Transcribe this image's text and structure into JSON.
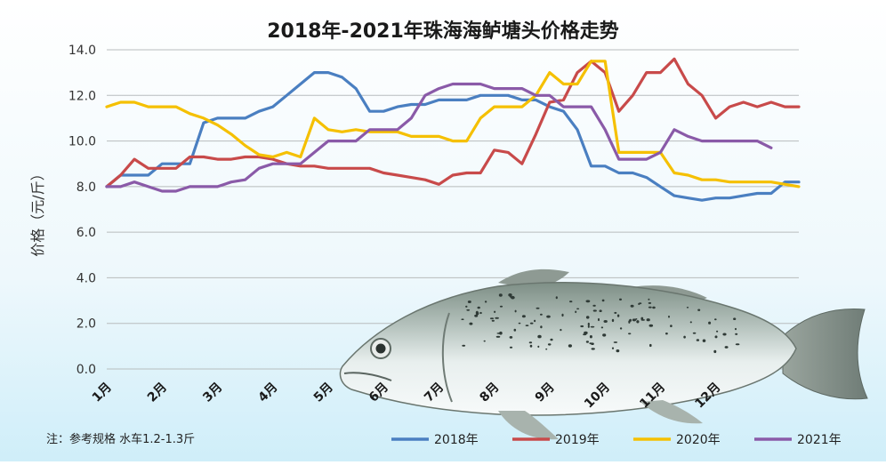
{
  "chart_data": {
    "type": "line",
    "title": "2018年-2021年珠海海鲈塘头价格走势",
    "ylabel": "价格（元/斤）",
    "xlabel": "",
    "ylim": [
      0,
      14
    ],
    "yticks": [
      "0.0",
      "2.0",
      "4.0",
      "6.0",
      "8.0",
      "10.0",
      "12.0",
      "14.0"
    ],
    "categories": [
      "1月",
      "2月",
      "3月",
      "4月",
      "5月",
      "6月",
      "7月",
      "8月",
      "9月",
      "10月",
      "11月",
      "12月"
    ],
    "grid": true,
    "legend_position": "bottom",
    "note": "注：参考规格  水车1.2-1.3斤",
    "series": [
      {
        "name": "2018年",
        "color": "#4a7fc1",
        "points": [
          [
            1.0,
            8.0
          ],
          [
            1.25,
            8.5
          ],
          [
            1.5,
            8.5
          ],
          [
            1.75,
            8.5
          ],
          [
            2.0,
            9.0
          ],
          [
            2.25,
            9.0
          ],
          [
            2.5,
            9.0
          ],
          [
            2.75,
            10.8
          ],
          [
            3.0,
            11.0
          ],
          [
            3.25,
            11.0
          ],
          [
            3.5,
            11.0
          ],
          [
            3.75,
            11.3
          ],
          [
            4.0,
            11.5
          ],
          [
            4.25,
            12.0
          ],
          [
            4.5,
            12.5
          ],
          [
            4.75,
            13.0
          ],
          [
            5.0,
            13.0
          ],
          [
            5.25,
            12.8
          ],
          [
            5.5,
            12.3
          ],
          [
            5.75,
            11.3
          ],
          [
            6.0,
            11.3
          ],
          [
            6.25,
            11.5
          ],
          [
            6.5,
            11.6
          ],
          [
            6.75,
            11.6
          ],
          [
            7.0,
            11.8
          ],
          [
            7.25,
            11.8
          ],
          [
            7.5,
            11.8
          ],
          [
            7.75,
            12.0
          ],
          [
            8.0,
            12.0
          ],
          [
            8.25,
            12.0
          ],
          [
            8.5,
            11.8
          ],
          [
            8.75,
            11.8
          ],
          [
            9.0,
            11.5
          ],
          [
            9.25,
            11.3
          ],
          [
            9.5,
            10.5
          ],
          [
            9.75,
            8.9
          ],
          [
            10.0,
            8.9
          ],
          [
            10.25,
            8.6
          ],
          [
            10.5,
            8.6
          ],
          [
            10.75,
            8.4
          ],
          [
            11.0,
            8.0
          ],
          [
            11.25,
            7.6
          ],
          [
            11.5,
            7.5
          ],
          [
            11.75,
            7.4
          ],
          [
            12.0,
            7.5
          ],
          [
            12.25,
            7.5
          ],
          [
            12.5,
            7.6
          ],
          [
            12.75,
            7.7
          ],
          [
            13.0,
            7.7
          ],
          [
            13.25,
            8.2
          ],
          [
            13.5,
            8.2
          ]
        ]
      },
      {
        "name": "2019年",
        "color": "#c84a4a",
        "points": [
          [
            1.0,
            8.0
          ],
          [
            1.25,
            8.5
          ],
          [
            1.5,
            9.2
          ],
          [
            1.75,
            8.8
          ],
          [
            2.0,
            8.8
          ],
          [
            2.25,
            8.8
          ],
          [
            2.5,
            9.3
          ],
          [
            2.75,
            9.3
          ],
          [
            3.0,
            9.2
          ],
          [
            3.25,
            9.2
          ],
          [
            3.5,
            9.3
          ],
          [
            3.75,
            9.3
          ],
          [
            4.0,
            9.2
          ],
          [
            4.25,
            9.0
          ],
          [
            4.5,
            8.9
          ],
          [
            4.75,
            8.9
          ],
          [
            5.0,
            8.8
          ],
          [
            5.25,
            8.8
          ],
          [
            5.5,
            8.8
          ],
          [
            5.75,
            8.8
          ],
          [
            6.0,
            8.6
          ],
          [
            6.25,
            8.5
          ],
          [
            6.5,
            8.4
          ],
          [
            6.75,
            8.3
          ],
          [
            7.0,
            8.1
          ],
          [
            7.25,
            8.5
          ],
          [
            7.5,
            8.6
          ],
          [
            7.75,
            8.6
          ],
          [
            8.0,
            9.6
          ],
          [
            8.25,
            9.5
          ],
          [
            8.5,
            9.0
          ],
          [
            8.75,
            10.3
          ],
          [
            9.0,
            11.7
          ],
          [
            9.25,
            11.8
          ],
          [
            9.5,
            13.0
          ],
          [
            9.75,
            13.5
          ],
          [
            10.0,
            13.0
          ],
          [
            10.25,
            11.3
          ],
          [
            10.5,
            12.0
          ],
          [
            10.75,
            13.0
          ],
          [
            11.0,
            13.0
          ],
          [
            11.25,
            13.6
          ],
          [
            11.5,
            12.5
          ],
          [
            11.75,
            12.0
          ],
          [
            12.0,
            11.0
          ],
          [
            12.25,
            11.5
          ],
          [
            12.5,
            11.7
          ],
          [
            12.75,
            11.5
          ],
          [
            13.0,
            11.7
          ],
          [
            13.25,
            11.5
          ],
          [
            13.5,
            11.5
          ]
        ]
      },
      {
        "name": "2020年",
        "color": "#f5c000",
        "points": [
          [
            1.0,
            11.5
          ],
          [
            1.25,
            11.7
          ],
          [
            1.5,
            11.7
          ],
          [
            1.75,
            11.5
          ],
          [
            2.0,
            11.5
          ],
          [
            2.25,
            11.5
          ],
          [
            2.5,
            11.2
          ],
          [
            2.75,
            11.0
          ],
          [
            3.0,
            10.7
          ],
          [
            3.25,
            10.3
          ],
          [
            3.5,
            9.8
          ],
          [
            3.75,
            9.4
          ],
          [
            4.0,
            9.3
          ],
          [
            4.25,
            9.5
          ],
          [
            4.5,
            9.3
          ],
          [
            4.75,
            11.0
          ],
          [
            5.0,
            10.5
          ],
          [
            5.25,
            10.4
          ],
          [
            5.5,
            10.5
          ],
          [
            5.75,
            10.4
          ],
          [
            6.0,
            10.4
          ],
          [
            6.25,
            10.4
          ],
          [
            6.5,
            10.2
          ],
          [
            6.75,
            10.2
          ],
          [
            7.0,
            10.2
          ],
          [
            7.25,
            10.0
          ],
          [
            7.5,
            10.0
          ],
          [
            7.75,
            11.0
          ],
          [
            8.0,
            11.5
          ],
          [
            8.25,
            11.5
          ],
          [
            8.5,
            11.5
          ],
          [
            8.75,
            12.0
          ],
          [
            9.0,
            13.0
          ],
          [
            9.25,
            12.5
          ],
          [
            9.5,
            12.5
          ],
          [
            9.75,
            13.5
          ],
          [
            10.0,
            13.5
          ],
          [
            10.25,
            9.5
          ],
          [
            10.5,
            9.5
          ],
          [
            10.75,
            9.5
          ],
          [
            11.0,
            9.5
          ],
          [
            11.25,
            8.6
          ],
          [
            11.5,
            8.5
          ],
          [
            11.75,
            8.3
          ],
          [
            12.0,
            8.3
          ],
          [
            12.25,
            8.2
          ],
          [
            12.5,
            8.2
          ],
          [
            12.75,
            8.2
          ],
          [
            13.0,
            8.2
          ],
          [
            13.25,
            8.1
          ],
          [
            13.5,
            8.0
          ]
        ]
      },
      {
        "name": "2021年",
        "color": "#8a5aa8",
        "points": [
          [
            1.0,
            8.0
          ],
          [
            1.25,
            8.0
          ],
          [
            1.5,
            8.2
          ],
          [
            1.75,
            8.0
          ],
          [
            2.0,
            7.8
          ],
          [
            2.25,
            7.8
          ],
          [
            2.5,
            8.0
          ],
          [
            2.75,
            8.0
          ],
          [
            3.0,
            8.0
          ],
          [
            3.25,
            8.2
          ],
          [
            3.5,
            8.3
          ],
          [
            3.75,
            8.8
          ],
          [
            4.0,
            9.0
          ],
          [
            4.25,
            9.0
          ],
          [
            4.5,
            9.0
          ],
          [
            4.75,
            9.5
          ],
          [
            5.0,
            10.0
          ],
          [
            5.25,
            10.0
          ],
          [
            5.5,
            10.0
          ],
          [
            5.75,
            10.5
          ],
          [
            6.0,
            10.5
          ],
          [
            6.25,
            10.5
          ],
          [
            6.5,
            11.0
          ],
          [
            6.75,
            12.0
          ],
          [
            7.0,
            12.3
          ],
          [
            7.25,
            12.5
          ],
          [
            7.5,
            12.5
          ],
          [
            7.75,
            12.5
          ],
          [
            8.0,
            12.3
          ],
          [
            8.25,
            12.3
          ],
          [
            8.5,
            12.3
          ],
          [
            8.75,
            12.0
          ],
          [
            9.0,
            12.0
          ],
          [
            9.25,
            11.5
          ],
          [
            9.5,
            11.5
          ],
          [
            9.75,
            11.5
          ],
          [
            10.0,
            10.5
          ],
          [
            10.25,
            9.2
          ],
          [
            10.5,
            9.2
          ],
          [
            10.75,
            9.2
          ],
          [
            11.0,
            9.5
          ],
          [
            11.25,
            10.5
          ],
          [
            11.5,
            10.2
          ],
          [
            11.75,
            10.0
          ],
          [
            12.0,
            10.0
          ],
          [
            12.25,
            10.0
          ],
          [
            12.5,
            10.0
          ],
          [
            12.75,
            10.0
          ],
          [
            13.0,
            9.7
          ]
        ]
      }
    ]
  }
}
